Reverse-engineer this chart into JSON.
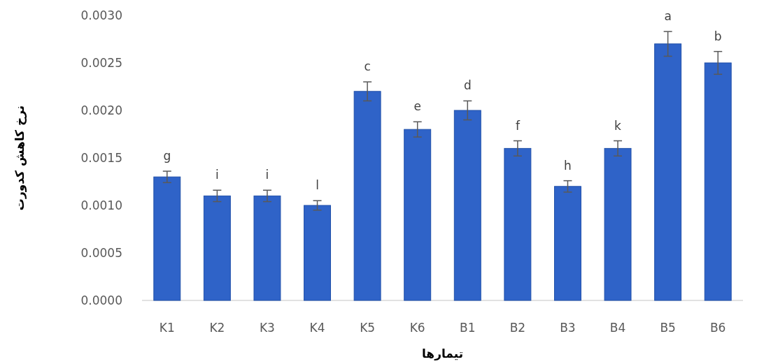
{
  "chart_data": {
    "type": "bar",
    "xlabel": "تیمارها",
    "ylabel": "نرخ کاهش کدورت",
    "categories": [
      "K1",
      "K2",
      "K3",
      "K4",
      "K5",
      "K6",
      "B1",
      "B2",
      "B3",
      "B4",
      "B5",
      "B6"
    ],
    "values": [
      0.0013,
      0.0011,
      0.0011,
      0.001,
      0.0022,
      0.0018,
      0.002,
      0.0016,
      0.0012,
      0.0016,
      0.0027,
      0.0025
    ],
    "errors": [
      6e-05,
      6e-05,
      6e-05,
      5e-05,
      0.0001,
      8e-05,
      0.0001,
      8e-05,
      6e-05,
      8e-05,
      0.00013,
      0.00012
    ],
    "color": "#2f63c8",
    "ylim": [
      0,
      0.003
    ],
    "yticks": [
      {
        "value": 0,
        "label": "0.0000"
      },
      {
        "value": 0.0005,
        "label": "0.0005"
      },
      {
        "value": 0.001,
        "label": "0.0010"
      },
      {
        "value": 0.0015,
        "label": "0.0015"
      },
      {
        "value": 0.002,
        "label": "0.0020"
      },
      {
        "value": 0.0025,
        "label": "0.0025"
      },
      {
        "value": 0.003,
        "label": "0.0030"
      }
    ],
    "annotations": [
      {
        "text": "g",
        "x": "K1",
        "y": 0.0013
      },
      {
        "text": "i",
        "x": "K2",
        "y": 0.0011
      },
      {
        "text": "i",
        "x": "K3",
        "y": 0.0011
      },
      {
        "text": "l",
        "x": "K4",
        "y": 0.001
      },
      {
        "text": "c",
        "x": "K5",
        "y": 0.0022
      },
      {
        "text": "e",
        "x": "K6",
        "y": 0.0018
      },
      {
        "text": "d",
        "x": "B1",
        "y": 0.002
      },
      {
        "text": "f",
        "x": "B2",
        "y": 0.0016
      },
      {
        "text": "h",
        "x": "B3",
        "y": 0.0012
      },
      {
        "text": "k",
        "x": "B4",
        "y": 0.0016
      },
      {
        "text": "a",
        "x": "B5",
        "y": 0.0027
      },
      {
        "text": "b",
        "x": "B6",
        "y": 0.0025
      }
    ],
    "grid": false
  }
}
